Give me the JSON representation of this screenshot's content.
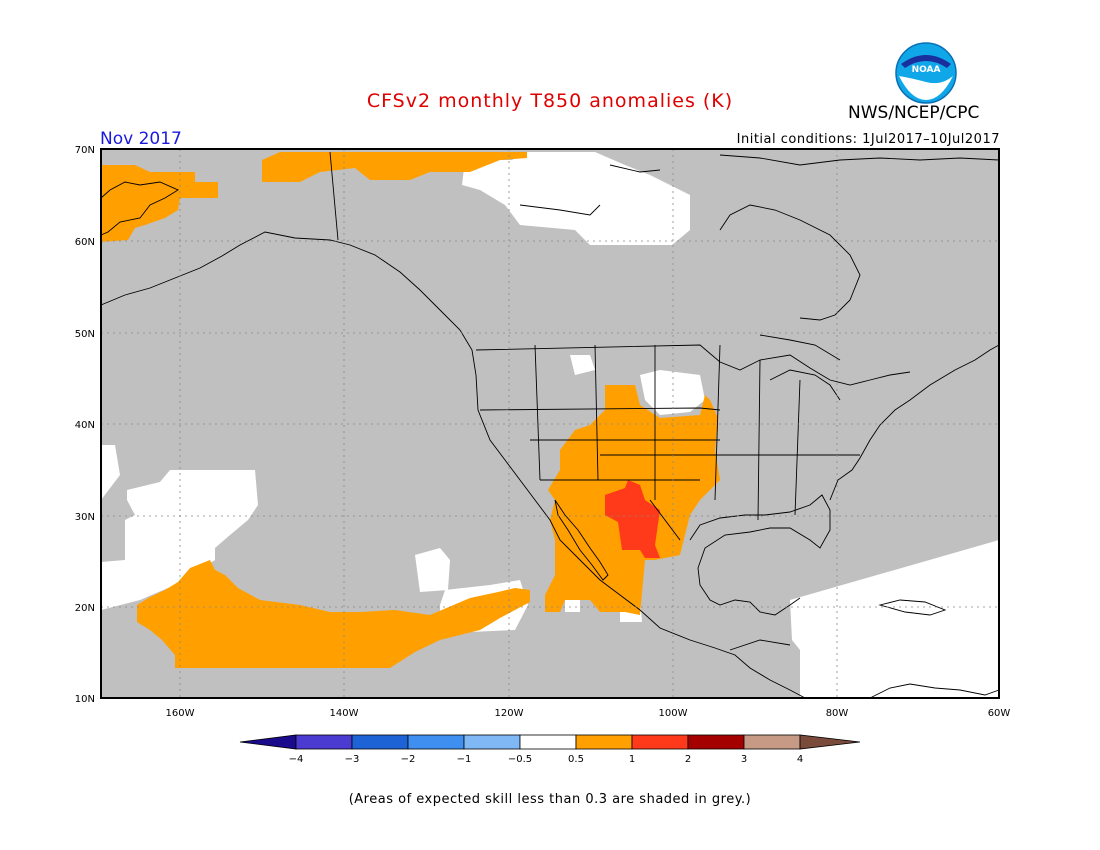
{
  "title": "CFSv2 monthly T850 anomalies (K)",
  "agency": "NWS/NCEP/CPC",
  "logo_text": "NOAA",
  "month": "Nov 2017",
  "initial_conditions": "Initial conditions: 1Jul2017–10Jul2017",
  "footnote": "(Areas of expected skill less than 0.3 are shaded in grey.)",
  "map": {
    "lon_range": [
      -172,
      -60
    ],
    "lat_range": [
      10,
      70
    ],
    "lat_labels": [
      "70N",
      "60N",
      "50N",
      "40N",
      "30N",
      "20N",
      "10N"
    ],
    "lon_labels": [
      "160W",
      "140W",
      "120W",
      "100W",
      "80W",
      "60W"
    ],
    "colors": {
      "skill_grey": "#c0c0c0",
      "anom_05_1": "#ff9f00",
      "anom_1_2": "#ff3a1a",
      "land_line": "#000000"
    }
  },
  "colorbar": {
    "labels": [
      "−4",
      "−3",
      "−2",
      "−1",
      "−0.5",
      "0.5",
      "1",
      "2",
      "3",
      "4"
    ],
    "colors": [
      "#1a0a8c",
      "#4b3bd0",
      "#1e63d6",
      "#3f8ff0",
      "#7fb8f5",
      "#ffffff",
      "#ff9f00",
      "#ff3a1a",
      "#a50000",
      "#c79a85",
      "#7a4a3a"
    ]
  }
}
